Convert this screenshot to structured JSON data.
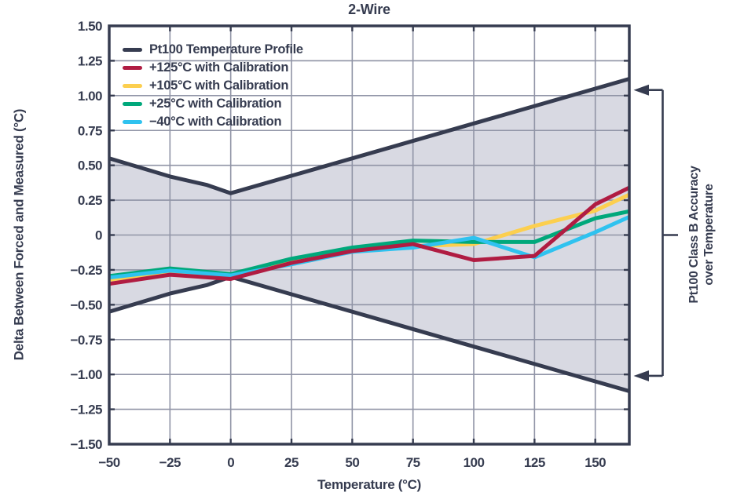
{
  "chart_data": {
    "type": "line",
    "title": "2-Wire",
    "xlabel": "Temperature (°C)",
    "ylabel": "Delta Between Forced and Measured (°C)",
    "xlim": [
      -50,
      164
    ],
    "ylim": [
      -1.5,
      1.5
    ],
    "grid": true,
    "x_ticks": {
      "values": [
        -50,
        -25,
        0,
        25,
        50,
        75,
        100,
        125,
        150
      ],
      "labels": [
        "−50",
        "−25",
        "0",
        "25",
        "50",
        "75",
        "100",
        "125",
        "150"
      ]
    },
    "y_ticks": {
      "values": [
        1.5,
        1.25,
        1.0,
        0.75,
        0.5,
        0.25,
        0,
        -0.25,
        -0.5,
        -0.75,
        -1.0,
        -1.25,
        -1.5
      ],
      "labels": [
        "1.50",
        "1.25",
        "1.00",
        "0.75",
        "0.50",
        "0.25",
        "0",
        "−0.25",
        "−0.50",
        "−0.75",
        "−1.00",
        "−1.25",
        "−1.50"
      ]
    },
    "band": {
      "fill_color": "#d8d9e2",
      "description": "Shaded region between Pt100 temperature profile upper and lower bounds"
    },
    "series": [
      {
        "id": "pt100-upper",
        "name": "Pt100 Temperature Profile (upper bound)",
        "color": "#363c50",
        "points": [
          [
            -50,
            0.55
          ],
          [
            -25,
            0.42
          ],
          [
            -10,
            0.36
          ],
          [
            0,
            0.3
          ],
          [
            164,
            1.12
          ]
        ]
      },
      {
        "id": "pt100-lower",
        "name": "Pt100 Temperature Profile (lower bound)",
        "color": "#363c50",
        "points": [
          [
            -50,
            -0.55
          ],
          [
            -25,
            -0.42
          ],
          [
            -10,
            -0.36
          ],
          [
            0,
            -0.3
          ],
          [
            164,
            -1.12
          ]
        ]
      },
      {
        "id": "cal-105",
        "name": "+105°C with Calibration",
        "color": "#fccf4f",
        "points": [
          [
            -50,
            -0.32
          ],
          [
            -25,
            -0.265
          ],
          [
            0,
            -0.3
          ],
          [
            25,
            -0.185
          ],
          [
            50,
            -0.105
          ],
          [
            75,
            -0.08
          ],
          [
            100,
            -0.065
          ],
          [
            125,
            0.065
          ],
          [
            150,
            0.175
          ],
          [
            164,
            0.29
          ]
        ]
      },
      {
        "id": "cal-25",
        "name": "+25°C with Calibration",
        "color": "#00a87b",
        "points": [
          [
            -50,
            -0.295
          ],
          [
            -25,
            -0.24
          ],
          [
            0,
            -0.28
          ],
          [
            25,
            -0.17
          ],
          [
            50,
            -0.09
          ],
          [
            75,
            -0.04
          ],
          [
            100,
            -0.05
          ],
          [
            125,
            -0.05
          ],
          [
            150,
            0.12
          ],
          [
            164,
            0.17
          ]
        ]
      },
      {
        "id": "cal-minus-40",
        "name": "−40°C with Calibration",
        "color": "#2fc2ef",
        "points": [
          [
            -50,
            -0.305
          ],
          [
            -25,
            -0.255
          ],
          [
            0,
            -0.29
          ],
          [
            25,
            -0.21
          ],
          [
            50,
            -0.12
          ],
          [
            75,
            -0.09
          ],
          [
            100,
            -0.02
          ],
          [
            125,
            -0.16
          ],
          [
            150,
            0.02
          ],
          [
            164,
            0.13
          ]
        ]
      },
      {
        "id": "cal-125",
        "name": "+125°C with Calibration",
        "color": "#b01c42",
        "points": [
          [
            -50,
            -0.35
          ],
          [
            -25,
            -0.285
          ],
          [
            0,
            -0.315
          ],
          [
            25,
            -0.2
          ],
          [
            50,
            -0.115
          ],
          [
            75,
            -0.065
          ],
          [
            100,
            -0.18
          ],
          [
            125,
            -0.15
          ],
          [
            150,
            0.22
          ],
          [
            164,
            0.34
          ]
        ]
      }
    ],
    "legend": {
      "position": "upper left",
      "entries": [
        {
          "label": "Pt100 Temperature Profile",
          "color": "#363c50"
        },
        {
          "label": "+125°C with Calibration",
          "color": "#b01c42"
        },
        {
          "label": "+105°C with Calibration",
          "color": "#fccf4f"
        },
        {
          "label": "+25°C with Calibration",
          "color": "#00a87b"
        },
        {
          "label": "−40°C with Calibration",
          "color": "#2fc2ef"
        }
      ]
    },
    "annotation": {
      "line1": "Pt100 Class B Accuracy",
      "line2": "over Temperature",
      "arrow_values": [
        1.04,
        -1.01
      ],
      "tick_value": 0
    },
    "colors": {
      "axis": "#363c50",
      "grid": "#9094a6",
      "text": "#363c50",
      "band": "#d8d9e2",
      "background": "#ffffff"
    }
  }
}
